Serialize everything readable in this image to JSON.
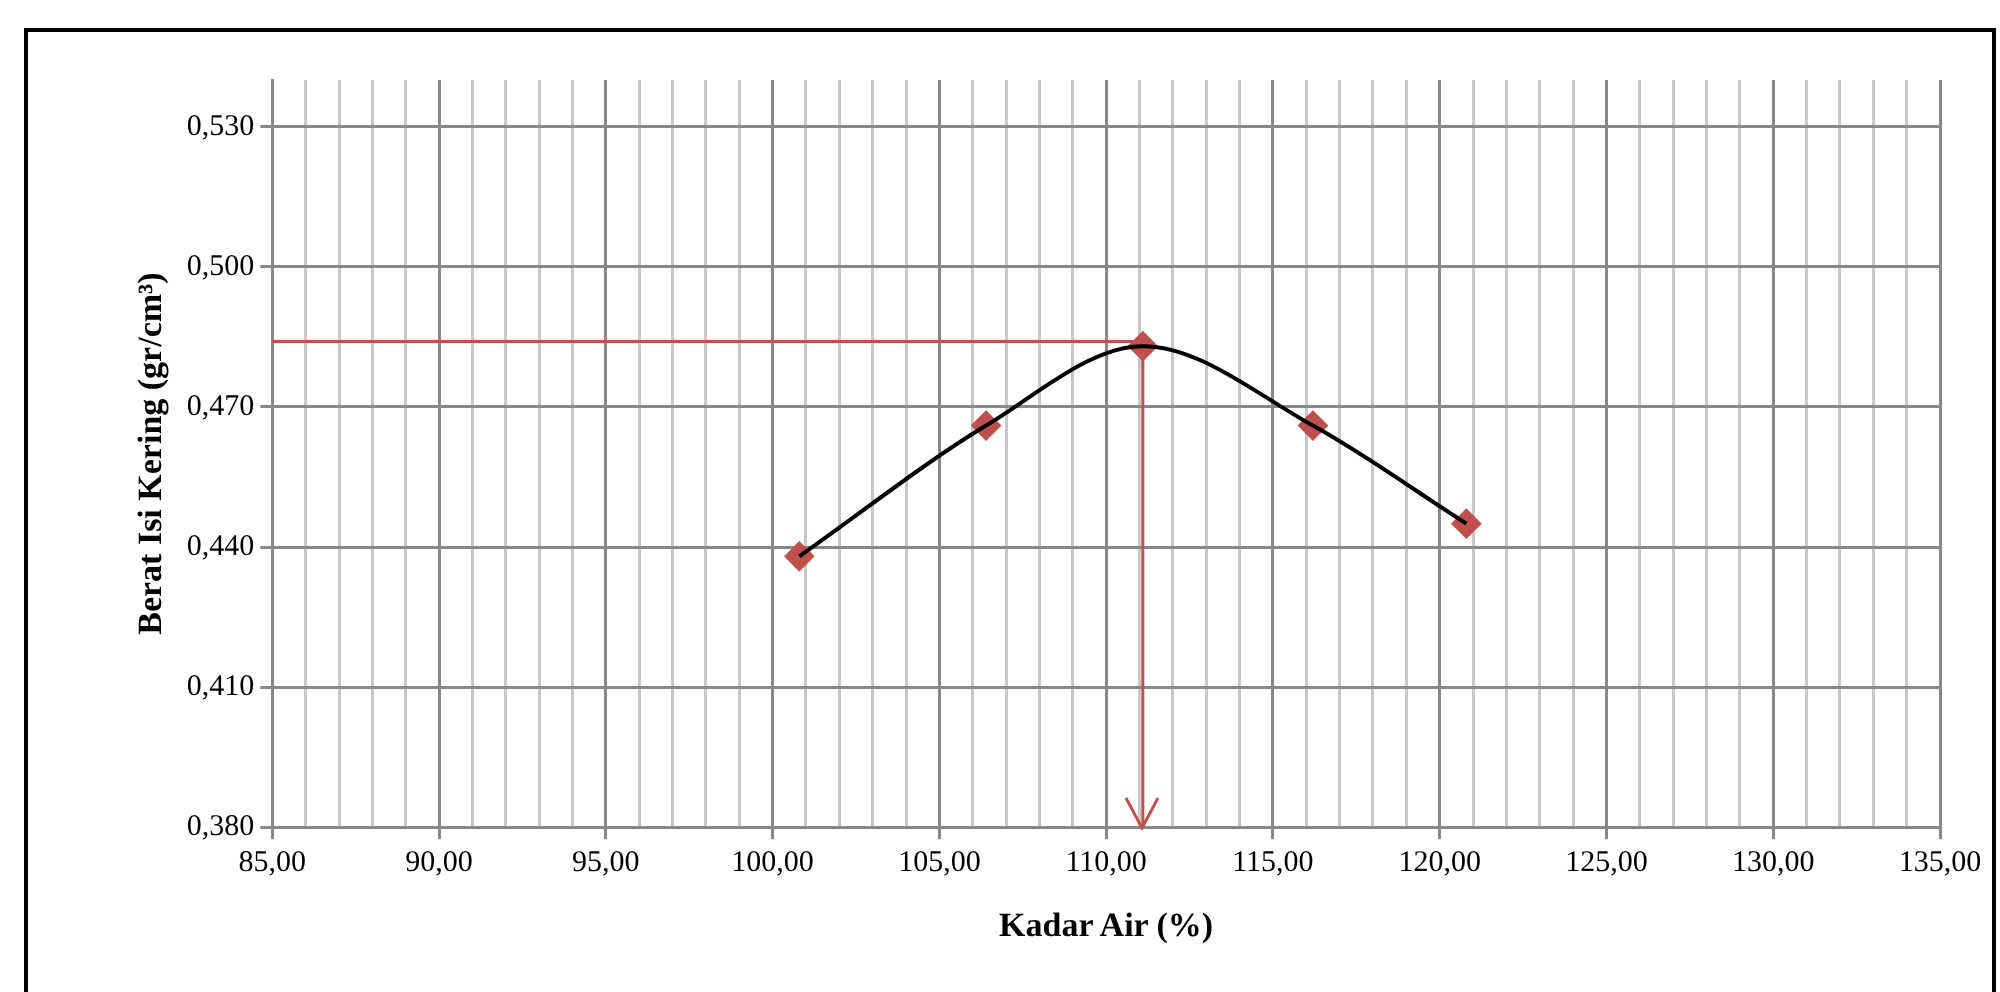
{
  "chart_data": {
    "type": "scatter",
    "xlabel": "Kadar Air (%)",
    "ylabel": "Berat Isi Kering (gr/cm³)",
    "xlim": [
      85,
      135
    ],
    "xticks": [
      {
        "value": 85,
        "label": "85,00"
      },
      {
        "value": 86,
        "label": null
      },
      {
        "value": 87,
        "label": null
      },
      {
        "value": 88,
        "label": null
      },
      {
        "value": 89,
        "label": null
      },
      {
        "value": 90,
        "label": "90,00"
      },
      {
        "value": 91,
        "label": null
      },
      {
        "value": 92,
        "label": null
      },
      {
        "value": 93,
        "label": null
      },
      {
        "value": 94,
        "label": null
      },
      {
        "value": 95,
        "label": "95,00"
      },
      {
        "value": 96,
        "label": null
      },
      {
        "value": 97,
        "label": null
      },
      {
        "value": 98,
        "label": null
      },
      {
        "value": 99,
        "label": null
      },
      {
        "value": 100,
        "label": "100,00"
      },
      {
        "value": 101,
        "label": null
      },
      {
        "value": 102,
        "label": null
      },
      {
        "value": 103,
        "label": null
      },
      {
        "value": 104,
        "label": null
      },
      {
        "value": 105,
        "label": "105,00"
      },
      {
        "value": 106,
        "label": null
      },
      {
        "value": 107,
        "label": null
      },
      {
        "value": 108,
        "label": null
      },
      {
        "value": 109,
        "label": null
      },
      {
        "value": 110,
        "label": "110,00"
      },
      {
        "value": 111,
        "label": null
      },
      {
        "value": 112,
        "label": null
      },
      {
        "value": 113,
        "label": null
      },
      {
        "value": 114,
        "label": null
      },
      {
        "value": 115,
        "label": "115,00"
      },
      {
        "value": 116,
        "label": null
      },
      {
        "value": 117,
        "label": null
      },
      {
        "value": 118,
        "label": null
      },
      {
        "value": 119,
        "label": null
      },
      {
        "value": 120,
        "label": "120,00"
      },
      {
        "value": 121,
        "label": null
      },
      {
        "value": 122,
        "label": null
      },
      {
        "value": 123,
        "label": null
      },
      {
        "value": 124,
        "label": null
      },
      {
        "value": 125,
        "label": "125,00"
      },
      {
        "value": 126,
        "label": null
      },
      {
        "value": 127,
        "label": null
      },
      {
        "value": 128,
        "label": null
      },
      {
        "value": 129,
        "label": null
      },
      {
        "value": 130,
        "label": "130,00"
      },
      {
        "value": 131,
        "label": null
      },
      {
        "value": 132,
        "label": null
      },
      {
        "value": 133,
        "label": null
      },
      {
        "value": 134,
        "label": null
      },
      {
        "value": 135,
        "label": "135,00"
      }
    ],
    "ylim": [
      0.38,
      0.54
    ],
    "yticks": [
      {
        "value": 0.38,
        "label": "0,380"
      },
      {
        "value": 0.41,
        "label": "0,410"
      },
      {
        "value": 0.44,
        "label": "0,440"
      },
      {
        "value": 0.47,
        "label": "0,470"
      },
      {
        "value": 0.5,
        "label": "0,500"
      },
      {
        "value": 0.53,
        "label": "0,530"
      }
    ],
    "grid": true,
    "legend": false,
    "series": [
      {
        "type": "line",
        "color": "#000000",
        "marker": "none",
        "x": [
          100.8,
          106.4,
          111.1,
          116.2,
          120.8
        ],
        "values": [
          0.438,
          0.466,
          0.483,
          0.466,
          0.445
        ]
      },
      {
        "type": "scatter",
        "color": "#c0504d",
        "marker": "diamond",
        "x": [
          100.8,
          106.4,
          111.1,
          116.2,
          120.8
        ],
        "values": [
          0.438,
          0.466,
          0.483,
          0.466,
          0.445
        ]
      }
    ],
    "ref_lines": [
      {
        "axis": "y",
        "value": 0.484,
        "color": "#c0504d"
      },
      {
        "axis": "x",
        "value": 111.1,
        "color": "#c0504d"
      }
    ]
  }
}
